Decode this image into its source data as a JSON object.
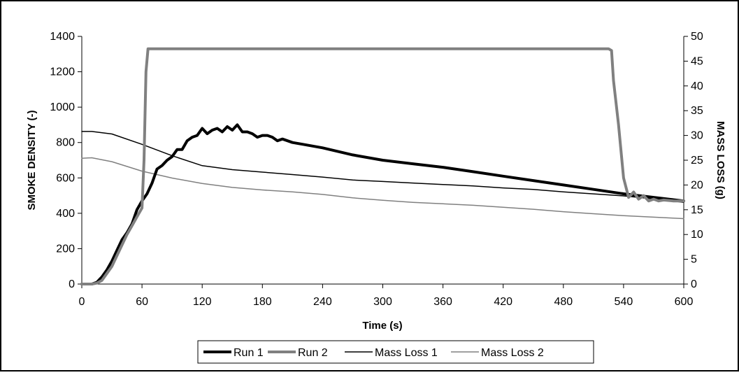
{
  "chart_data": {
    "type": "line",
    "title": "",
    "xlabel": "Time (s)",
    "ylabel": "SMOKE DENSITY (-)",
    "y2label": "MASS LOSS (g)",
    "xlim": [
      0,
      600
    ],
    "ylim": [
      0,
      1400
    ],
    "y2lim": [
      0,
      50
    ],
    "x_ticks": [
      "0",
      "60",
      "120",
      "180",
      "240",
      "300",
      "360",
      "420",
      "480",
      "540",
      "600"
    ],
    "y_ticks": [
      "0",
      "200",
      "400",
      "600",
      "800",
      "1000",
      "1200",
      "1400"
    ],
    "y2_ticks": [
      "0",
      "5",
      "10",
      "15",
      "20",
      "25",
      "30",
      "35",
      "40",
      "45",
      "50"
    ],
    "grid": false,
    "legend_position": "bottom",
    "series": [
      {
        "name": "Run 1",
        "axis": "left",
        "color": "#000000",
        "style": "thick",
        "x": [
          0,
          10,
          15,
          20,
          25,
          30,
          35,
          40,
          45,
          50,
          55,
          60,
          65,
          70,
          75,
          80,
          85,
          90,
          95,
          100,
          105,
          110,
          115,
          120,
          125,
          130,
          135,
          140,
          145,
          150,
          155,
          160,
          165,
          170,
          175,
          180,
          185,
          190,
          195,
          200,
          210,
          220,
          240,
          270,
          300,
          330,
          360,
          390,
          420,
          450,
          480,
          510,
          540,
          570,
          600
        ],
        "y": [
          0,
          0,
          10,
          40,
          80,
          130,
          190,
          250,
          290,
          340,
          420,
          470,
          510,
          570,
          650,
          670,
          700,
          720,
          760,
          760,
          810,
          830,
          840,
          880,
          850,
          870,
          880,
          860,
          890,
          870,
          900,
          860,
          860,
          850,
          830,
          840,
          840,
          830,
          810,
          820,
          800,
          790,
          770,
          730,
          700,
          680,
          660,
          635,
          610,
          585,
          560,
          535,
          510,
          490,
          470
        ]
      },
      {
        "name": "Run 2",
        "axis": "left",
        "color": "#808080",
        "style": "thick",
        "x": [
          0,
          10,
          15,
          20,
          25,
          30,
          35,
          40,
          45,
          50,
          55,
          60,
          62,
          64,
          66,
          70,
          100,
          200,
          300,
          400,
          500,
          525,
          528,
          530,
          535,
          540,
          545,
          550,
          555,
          560,
          565,
          570,
          575,
          580,
          590,
          600
        ],
        "y": [
          0,
          0,
          5,
          20,
          60,
          100,
          160,
          220,
          280,
          330,
          380,
          430,
          700,
          1200,
          1330,
          1330,
          1330,
          1330,
          1330,
          1330,
          1330,
          1330,
          1320,
          1150,
          900,
          600,
          490,
          520,
          480,
          500,
          470,
          480,
          470,
          475,
          470,
          470
        ]
      },
      {
        "name": "Mass Loss 1",
        "axis": "right",
        "color": "#000000",
        "style": "thin",
        "x": [
          0,
          10,
          30,
          60,
          90,
          120,
          150,
          180,
          210,
          240,
          270,
          300,
          330,
          360,
          390,
          420,
          450,
          480,
          510,
          540,
          570,
          600
        ],
        "y": [
          30.8,
          30.8,
          30.3,
          28.2,
          25.9,
          23.9,
          23.1,
          22.6,
          22.1,
          21.6,
          21.0,
          20.7,
          20.4,
          20.1,
          19.8,
          19.4,
          19.1,
          18.6,
          18.2,
          17.8,
          17.2,
          16.5
        ]
      },
      {
        "name": "Mass Loss 2",
        "axis": "right",
        "color": "#808080",
        "style": "thin",
        "x": [
          0,
          10,
          30,
          60,
          90,
          120,
          150,
          180,
          210,
          240,
          270,
          300,
          330,
          360,
          390,
          420,
          450,
          480,
          510,
          540,
          570,
          600
        ],
        "y": [
          25.4,
          25.5,
          24.7,
          22.8,
          21.4,
          20.3,
          19.5,
          19.0,
          18.6,
          18.1,
          17.4,
          16.9,
          16.5,
          16.2,
          15.9,
          15.5,
          15.1,
          14.6,
          14.2,
          13.8,
          13.5,
          13.2
        ]
      }
    ]
  }
}
